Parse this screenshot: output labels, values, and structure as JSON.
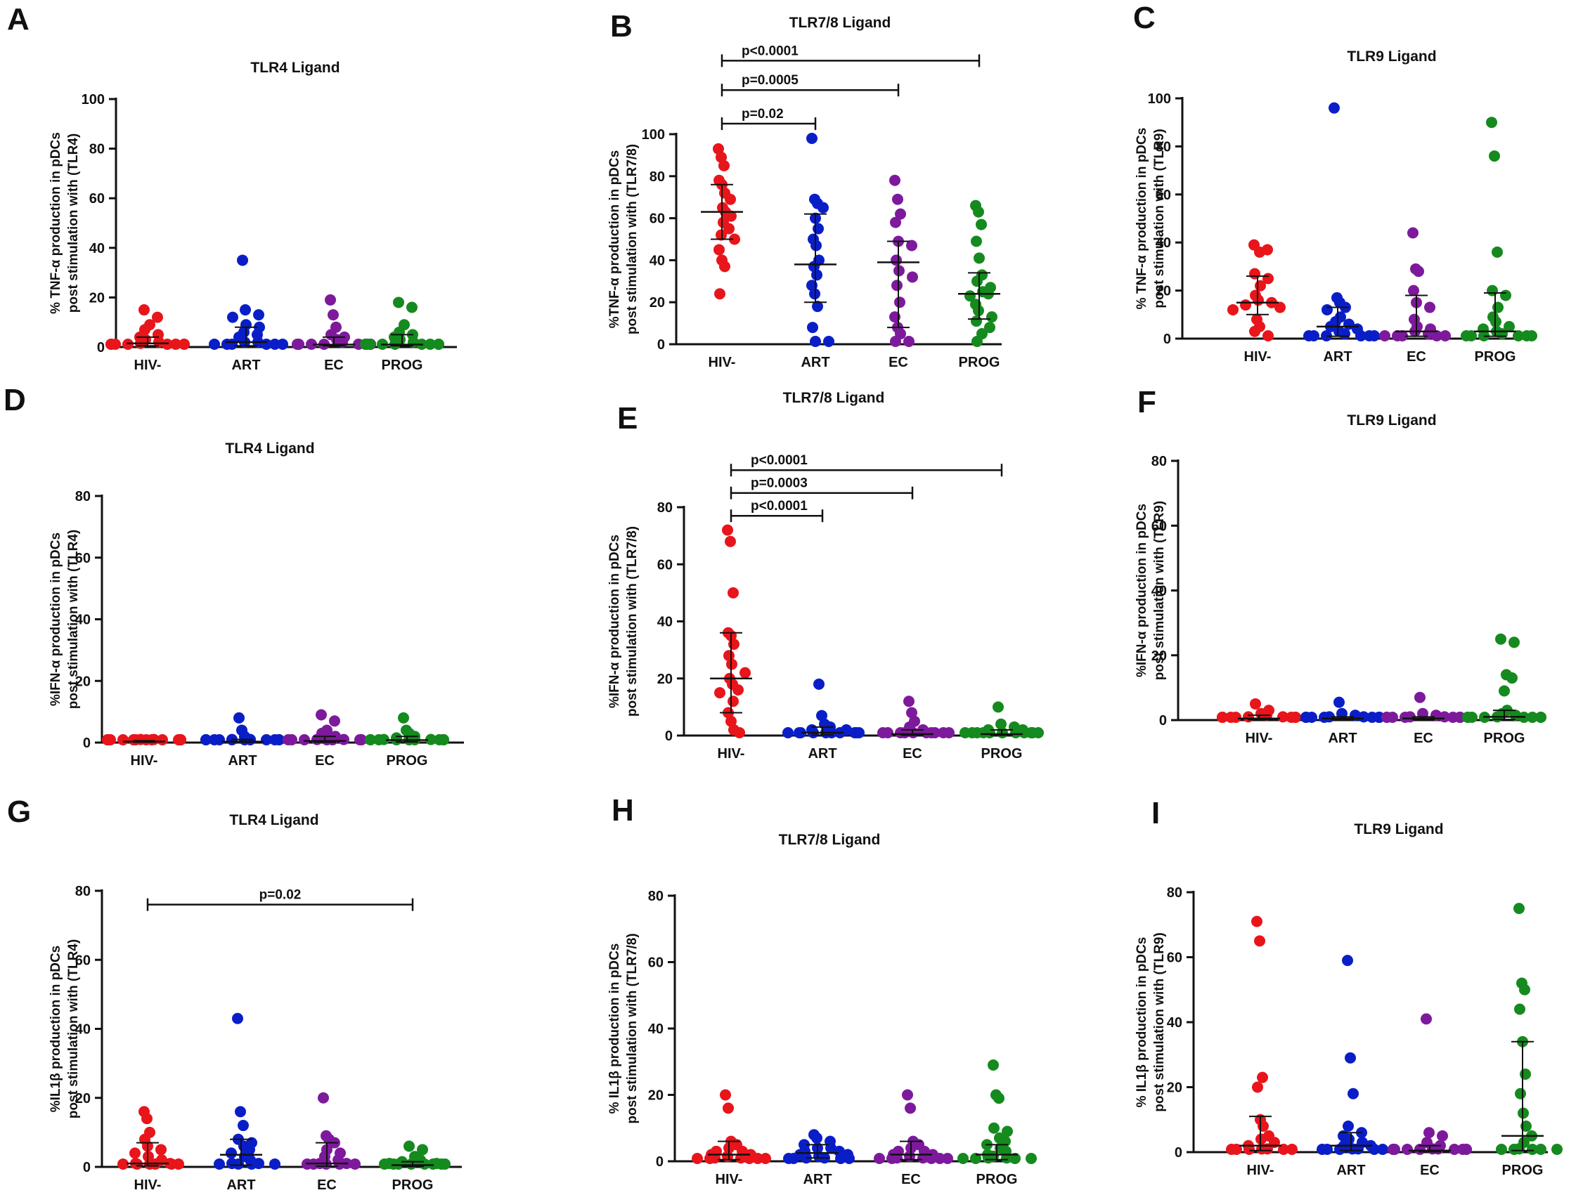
{
  "colors": {
    "HIV-": "#e8151b",
    "ART": "#0a1ec8",
    "EC": "#7d1a9c",
    "PROG": "#158a1e",
    "axis": "#111111"
  },
  "chart_data": [
    {
      "id": "A",
      "type": "scatter",
      "title": "TLR4 Ligand",
      "ylabel": [
        "% TNF-α production in pDCs",
        "post stimulation with (TLR4)"
      ],
      "ylim": [
        0,
        100
      ],
      "yticks": [
        0,
        20,
        40,
        60,
        80,
        100
      ],
      "categories": [
        "HIV-",
        "ART",
        "EC",
        "PROG"
      ],
      "series": [
        {
          "name": "HIV-",
          "values": [
            15,
            12,
            9,
            7,
            5,
            4,
            3,
            2,
            1.5,
            1,
            1,
            0.5,
            0.5,
            0.5,
            0.2,
            0.2,
            0
          ],
          "median": 1.5,
          "q1": 0.5,
          "q3": 4
        },
        {
          "name": "ART",
          "values": [
            35,
            15,
            13,
            12,
            9,
            8,
            6,
            5,
            4,
            2,
            2,
            1,
            1,
            0.5,
            0.5,
            0.2,
            0
          ],
          "median": 2,
          "q1": 0.5,
          "q3": 8
        },
        {
          "name": "EC",
          "values": [
            19,
            13,
            8,
            5,
            4,
            3,
            2,
            1,
            1,
            0.5,
            0.5,
            0.5,
            0.2,
            0.2,
            0
          ],
          "median": 1,
          "q1": 0.5,
          "q3": 4
        },
        {
          "name": "PROG",
          "values": [
            18,
            16,
            9,
            6,
            5,
            4,
            3,
            2,
            1,
            1,
            0.5,
            0.5,
            0.5,
            0.2,
            0.2,
            0,
            0
          ],
          "median": 1,
          "q1": 0.5,
          "q3": 5
        }
      ],
      "brackets": []
    },
    {
      "id": "B",
      "type": "scatter",
      "title": "TLR7/8 Ligand",
      "ylabel": [
        "%TNF-α production in pDCs",
        "post stimulation with (TLR7/8)"
      ],
      "ylim": [
        0,
        100
      ],
      "yticks": [
        0,
        20,
        40,
        60,
        80,
        100
      ],
      "categories": [
        "HIV-",
        "ART",
        "EC",
        "PROG"
      ],
      "series": [
        {
          "name": "HIV-",
          "values": [
            93,
            89,
            85,
            78,
            76,
            72,
            69,
            65,
            63,
            61,
            58,
            55,
            52,
            50,
            45,
            40,
            37,
            24
          ],
          "median": 63,
          "q1": 50,
          "q3": 76
        },
        {
          "name": "ART",
          "values": [
            98,
            69,
            67,
            65,
            60,
            55,
            50,
            47,
            40,
            37,
            33,
            28,
            24,
            18,
            8,
            0,
            0
          ],
          "median": 38,
          "q1": 20,
          "q3": 62
        },
        {
          "name": "EC",
          "values": [
            78,
            69,
            62,
            58,
            49,
            47,
            40,
            35,
            32,
            28,
            20,
            13,
            8,
            5,
            1,
            0
          ],
          "median": 39,
          "q1": 8,
          "q3": 49
        },
        {
          "name": "PROG",
          "values": [
            66,
            63,
            57,
            49,
            41,
            33,
            30,
            27,
            25,
            24,
            23,
            19,
            16,
            13,
            11,
            8,
            5,
            1
          ],
          "median": 24,
          "q1": 12,
          "q3": 34
        }
      ],
      "brackets": [
        {
          "from": "HIV-",
          "to": "ART",
          "value": 105,
          "label": "p=0.02"
        },
        {
          "from": "HIV-",
          "to": "EC",
          "value": 121,
          "label": "p=0.0005"
        },
        {
          "from": "HIV-",
          "to": "PROG",
          "value": 135,
          "label": "p<0.0001"
        }
      ]
    },
    {
      "id": "C",
      "type": "scatter",
      "title": "TLR9 Ligand",
      "ylabel": [
        "% TNF-α production in  pDCs",
        "post stimulation with (TLR9)"
      ],
      "ylim": [
        0,
        100
      ],
      "yticks": [
        0,
        20,
        40,
        60,
        80,
        100
      ],
      "categories": [
        "HIV-",
        "ART",
        "EC",
        "PROG"
      ],
      "series": [
        {
          "name": "HIV-",
          "values": [
            39,
            37,
            36,
            27,
            25,
            22,
            18,
            16,
            15,
            14,
            13,
            12,
            8,
            5,
            3,
            1
          ],
          "median": 15,
          "q1": 10,
          "q3": 26
        },
        {
          "name": "ART",
          "values": [
            96,
            17,
            15,
            13,
            12,
            9,
            7,
            6,
            5,
            4,
            3,
            2,
            1,
            1,
            0.5,
            0.5,
            0.2,
            0
          ],
          "median": 5,
          "q1": 1,
          "q3": 13
        },
        {
          "name": "EC",
          "values": [
            44,
            29,
            28,
            20,
            15,
            13,
            8,
            5,
            4,
            3,
            2,
            1,
            1,
            0.5,
            0.5,
            0
          ],
          "median": 3,
          "q1": 1,
          "q3": 18
        },
        {
          "name": "PROG",
          "values": [
            90,
            76,
            36,
            20,
            18,
            13,
            9,
            7,
            5,
            4,
            3,
            2,
            1,
            1,
            0.5,
            0.5,
            0.2,
            0
          ],
          "median": 3,
          "q1": 1,
          "q3": 19
        }
      ],
      "brackets": []
    },
    {
      "id": "D",
      "type": "scatter",
      "title": "TLR4 Ligand",
      "ylabel": [
        "%IFN-α production in pDCs",
        "post stimulation with (TLR4)"
      ],
      "ylim": [
        0,
        80
      ],
      "yticks": [
        0,
        20,
        40,
        60,
        80
      ],
      "categories": [
        "HIV-",
        "ART",
        "EC",
        "PROG"
      ],
      "series": [
        {
          "name": "HIV-",
          "values": [
            1,
            1,
            0.8,
            0.6,
            0.5,
            0.5,
            0.4,
            0.3,
            0.3,
            0.2,
            0.2,
            0.1,
            0.1,
            0,
            0,
            0
          ],
          "median": 0.3,
          "q1": 0.1,
          "q3": 0.6
        },
        {
          "name": "ART",
          "values": [
            8,
            4,
            2,
            1,
            1,
            0.5,
            0.5,
            0.4,
            0.3,
            0.2,
            0.2,
            0.1,
            0.1,
            0,
            0,
            0
          ],
          "median": 0.3,
          "q1": 0.1,
          "q3": 1
        },
        {
          "name": "EC",
          "values": [
            9,
            7,
            4,
            3,
            2,
            1,
            1,
            0.5,
            0.5,
            0.3,
            0.2,
            0.1,
            0.1,
            0,
            0
          ],
          "median": 0.5,
          "q1": 0.1,
          "q3": 2
        },
        {
          "name": "PROG",
          "values": [
            8,
            4,
            3,
            2,
            1.5,
            1,
            1,
            0.8,
            0.5,
            0.5,
            0.3,
            0.2,
            0.1,
            0,
            0,
            0
          ],
          "median": 0.8,
          "q1": 0.2,
          "q3": 2
        }
      ],
      "brackets": []
    },
    {
      "id": "E",
      "type": "scatter",
      "title": "TLR7/8 Ligand",
      "ylabel": [
        "%IFN-α production in pDCs",
        "post stimulation with (TLR7/8)"
      ],
      "ylim": [
        0,
        80
      ],
      "yticks": [
        0,
        20,
        40,
        60,
        80
      ],
      "categories": [
        "HIV-",
        "ART",
        "EC",
        "PROG"
      ],
      "series": [
        {
          "name": "HIV-",
          "values": [
            72,
            68,
            50,
            36,
            35,
            32,
            28,
            25,
            22,
            20,
            18,
            16,
            15,
            12,
            8,
            5,
            2,
            1
          ],
          "median": 20,
          "q1": 8,
          "q3": 36
        },
        {
          "name": "ART",
          "values": [
            18,
            7,
            4,
            3,
            2,
            2,
            1,
            1,
            0.5,
            0.5,
            0.3,
            0.2,
            0.1,
            0,
            0,
            0
          ],
          "median": 1,
          "q1": 0.2,
          "q3": 3
        },
        {
          "name": "EC",
          "values": [
            12,
            8,
            5,
            3,
            2,
            1,
            1,
            0.5,
            0.5,
            0.3,
            0.2,
            0.1,
            0,
            0,
            0
          ],
          "median": 0.5,
          "q1": 0.1,
          "q3": 2
        },
        {
          "name": "PROG",
          "values": [
            10,
            4,
            3,
            2,
            2,
            1,
            1,
            0.5,
            0.5,
            0.3,
            0.2,
            0.2,
            0.1,
            0,
            0,
            0
          ],
          "median": 0.5,
          "q1": 0.1,
          "q3": 2
        }
      ],
      "brackets": [
        {
          "from": "HIV-",
          "to": "ART",
          "value": 77,
          "label": "p<0.0001"
        },
        {
          "from": "HIV-",
          "to": "EC",
          "value": 85,
          "label": "p=0.0003"
        },
        {
          "from": "HIV-",
          "to": "PROG",
          "value": 93,
          "label": "p<0.0001"
        }
      ]
    },
    {
      "id": "F",
      "type": "scatter",
      "title": "TLR9 Ligand",
      "ylabel": [
        "%IFN-α production in pDCs",
        "post stimulation with (TLR9)"
      ],
      "ylim": [
        0,
        80
      ],
      "yticks": [
        0,
        20,
        40,
        60,
        80
      ],
      "categories": [
        "HIV-",
        "ART",
        "EC",
        "PROG"
      ],
      "series": [
        {
          "name": "HIV-",
          "values": [
            5,
            3,
            2,
            1.5,
            1,
            1,
            0.8,
            0.5,
            0.5,
            0.3,
            0.2,
            0.1,
            0,
            0,
            0
          ],
          "median": 0.5,
          "q1": 0.1,
          "q3": 1.5
        },
        {
          "name": "ART",
          "values": [
            5.5,
            2,
            1.5,
            1,
            1,
            0.8,
            0.5,
            0.5,
            0.3,
            0.2,
            0.2,
            0.1,
            0,
            0,
            0
          ],
          "median": 0.5,
          "q1": 0.1,
          "q3": 1
        },
        {
          "name": "EC",
          "values": [
            7,
            2,
            1.5,
            1,
            1,
            0.8,
            0.5,
            0.5,
            0.3,
            0.2,
            0.2,
            0.1,
            0,
            0,
            0
          ],
          "median": 0.5,
          "q1": 0.1,
          "q3": 1
        },
        {
          "name": "PROG",
          "values": [
            25,
            24,
            14,
            13,
            9,
            3,
            2,
            1.5,
            1,
            0.8,
            0.5,
            0.5,
            0.3,
            0.2,
            0.1,
            0,
            0
          ],
          "median": 1,
          "q1": 0.2,
          "q3": 3
        }
      ],
      "brackets": []
    },
    {
      "id": "G",
      "type": "scatter",
      "title": "TLR4 Ligand",
      "ylabel": [
        "%IL1β production in pDCs",
        "post stimulation with (TLR4)"
      ],
      "ylim": [
        0,
        80
      ],
      "yticks": [
        0,
        20,
        40,
        60,
        80
      ],
      "categories": [
        "HIV-",
        "ART",
        "EC",
        "PROG"
      ],
      "series": [
        {
          "name": "HIV-",
          "values": [
            16,
            14,
            10,
            8,
            6,
            5,
            4,
            3,
            2,
            1,
            1,
            0.5,
            0.5,
            0.3,
            0.2,
            0,
            0
          ],
          "median": 1,
          "q1": 0.3,
          "q3": 7
        },
        {
          "name": "ART",
          "values": [
            43,
            16,
            12,
            8,
            7,
            6,
            5,
            4,
            3,
            2,
            1,
            1,
            0.5,
            0.5,
            0.2,
            0
          ],
          "median": 3.5,
          "q1": 0.5,
          "q3": 8
        },
        {
          "name": "EC",
          "values": [
            20,
            9,
            8,
            7,
            5,
            4,
            3,
            2,
            1,
            1,
            0.5,
            0.5,
            0.2,
            0,
            0
          ],
          "median": 1,
          "q1": 0.2,
          "q3": 7
        },
        {
          "name": "PROG",
          "values": [
            6,
            5,
            3,
            2,
            1.5,
            1,
            1,
            0.5,
            0.5,
            0.3,
            0.2,
            0.1,
            0,
            0,
            0
          ],
          "median": 0.5,
          "q1": 0.1,
          "q3": 1.5
        }
      ],
      "brackets": [
        {
          "from": "HIV-",
          "to": "PROG",
          "value": 76,
          "label": "p=0.02"
        }
      ]
    },
    {
      "id": "H",
      "type": "scatter",
      "title": "TLR7/8 Ligand",
      "ylabel": [
        "% IL1β production in pDCs",
        "post stimulation with (TLR7/8)"
      ],
      "ylim": [
        0,
        80
      ],
      "yticks": [
        0,
        20,
        40,
        60,
        80
      ],
      "categories": [
        "HIV-",
        "ART",
        "EC",
        "PROG"
      ],
      "series": [
        {
          "name": "HIV-",
          "values": [
            20,
            16,
            6,
            5,
            4,
            3,
            3,
            2,
            2,
            1.5,
            1,
            1,
            0.5,
            0.5,
            0.3,
            0.2,
            0
          ],
          "median": 2,
          "q1": 0.5,
          "q3": 6
        },
        {
          "name": "ART",
          "values": [
            8,
            7,
            6,
            5,
            4,
            4,
            3,
            3,
            2,
            2,
            1.5,
            1,
            1,
            0.5,
            0.5,
            0.2,
            0
          ],
          "median": 2.5,
          "q1": 1,
          "q3": 5
        },
        {
          "name": "EC",
          "values": [
            20,
            16,
            6,
            5,
            4,
            3,
            3,
            2,
            2,
            1.5,
            1,
            1,
            0.5,
            0.5,
            0.3,
            0.2,
            0
          ],
          "median": 2,
          "q1": 0.5,
          "q3": 6
        },
        {
          "name": "PROG",
          "values": [
            29,
            20,
            19,
            10,
            9,
            7,
            6,
            5,
            4,
            3,
            2,
            1.5,
            1,
            1,
            0.5,
            0.5,
            0.2,
            0
          ],
          "median": 2,
          "q1": 0.5,
          "q3": 5
        }
      ],
      "brackets": []
    },
    {
      "id": "I",
      "type": "scatter",
      "title": "TLR9 Ligand",
      "ylabel": [
        "% IL1β production in pDCs",
        "post stimulation with (TLR9)"
      ],
      "ylim": [
        0,
        80
      ],
      "yticks": [
        0,
        20,
        40,
        60,
        80
      ],
      "categories": [
        "HIV-",
        "ART",
        "EC",
        "PROG"
      ],
      "series": [
        {
          "name": "HIV-",
          "values": [
            71,
            65,
            23,
            20,
            10,
            8,
            5,
            4,
            3,
            2,
            1,
            1,
            0.5,
            0.5,
            0.2,
            0,
            0
          ],
          "median": 2,
          "q1": 0.5,
          "q3": 11
        },
        {
          "name": "ART",
          "values": [
            59,
            29,
            18,
            8,
            6,
            5,
            4,
            3,
            2,
            2,
            1,
            1,
            0.5,
            0.5,
            0.2,
            0,
            0
          ],
          "median": 2,
          "q1": 0.5,
          "q3": 6
        },
        {
          "name": "EC",
          "values": [
            41,
            6,
            5,
            3,
            2,
            1,
            1,
            0.8,
            0.5,
            0.5,
            0.3,
            0.2,
            0.1,
            0,
            0,
            0
          ],
          "median": 0.5,
          "q1": 0.1,
          "q3": 2
        },
        {
          "name": "PROG",
          "values": [
            75,
            52,
            50,
            44,
            34,
            24,
            18,
            12,
            8,
            5,
            3,
            1,
            0.5,
            0.5,
            0.2,
            0,
            0
          ],
          "median": 5,
          "q1": 0.5,
          "q3": 34
        }
      ],
      "brackets": []
    }
  ]
}
